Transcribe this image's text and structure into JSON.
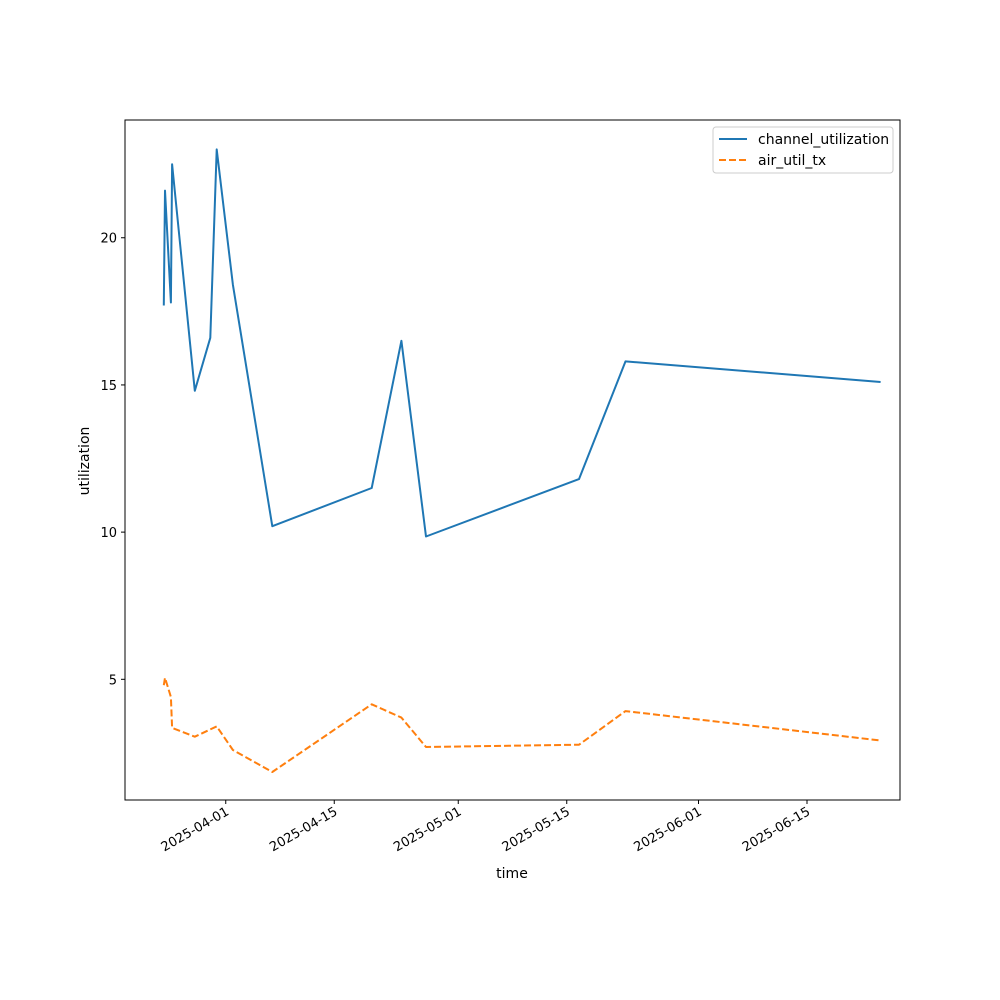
{
  "chart_data": {
    "type": "line",
    "title": "",
    "xlabel": "time",
    "ylabel": "utilization",
    "x_ticks": [
      "2025-04-01",
      "2025-04-15",
      "2025-05-01",
      "2025-05-15",
      "2025-06-01",
      "2025-06-15"
    ],
    "y_ticks": [
      5,
      10,
      15,
      20
    ],
    "xlim": [
      "2025-03-19",
      "2025-06-27"
    ],
    "ylim": [
      0.9,
      24.0
    ],
    "grid": false,
    "legend_position": "top-right",
    "series": [
      {
        "name": "channel_utilization",
        "color": "#1f77b4",
        "linestyle": "solid",
        "points": [
          {
            "x": "2025-03-24T00:00",
            "y": 17.7
          },
          {
            "x": "2025-03-24T04:00",
            "y": 21.6
          },
          {
            "x": "2025-03-24T22:00",
            "y": 17.8
          },
          {
            "x": "2025-03-25T02:00",
            "y": 22.5
          },
          {
            "x": "2025-03-28T00:00",
            "y": 14.8
          },
          {
            "x": "2025-03-30T00:00",
            "y": 16.6
          },
          {
            "x": "2025-03-30T20:00",
            "y": 23.0
          },
          {
            "x": "2025-04-01T22:00",
            "y": 18.4
          },
          {
            "x": "2025-04-07T00:00",
            "y": 10.2
          },
          {
            "x": "2025-04-19T20:00",
            "y": 11.5
          },
          {
            "x": "2025-04-23T16:00",
            "y": 16.5
          },
          {
            "x": "2025-04-26T20:00",
            "y": 9.85
          },
          {
            "x": "2025-05-16T14:00",
            "y": 11.8
          },
          {
            "x": "2025-05-22T14:00",
            "y": 15.8
          },
          {
            "x": "2025-06-24T12:00",
            "y": 15.1
          }
        ]
      },
      {
        "name": "air_util_tx",
        "color": "#ff7f0e",
        "linestyle": "dashed",
        "points": [
          {
            "x": "2025-03-24T00:00",
            "y": 4.8
          },
          {
            "x": "2025-03-24T04:00",
            "y": 5.05
          },
          {
            "x": "2025-03-24T22:00",
            "y": 4.4
          },
          {
            "x": "2025-03-25T02:00",
            "y": 3.35
          },
          {
            "x": "2025-03-28T00:00",
            "y": 3.05
          },
          {
            "x": "2025-03-30T20:00",
            "y": 3.4
          },
          {
            "x": "2025-04-01T22:00",
            "y": 2.6
          },
          {
            "x": "2025-04-07T00:00",
            "y": 1.85
          },
          {
            "x": "2025-04-19T20:00",
            "y": 4.15
          },
          {
            "x": "2025-04-23T16:00",
            "y": 3.7
          },
          {
            "x": "2025-04-26T20:00",
            "y": 2.7
          },
          {
            "x": "2025-05-16T14:00",
            "y": 2.78
          },
          {
            "x": "2025-05-22T14:00",
            "y": 3.92
          },
          {
            "x": "2025-06-24T12:00",
            "y": 2.92
          }
        ]
      }
    ]
  }
}
